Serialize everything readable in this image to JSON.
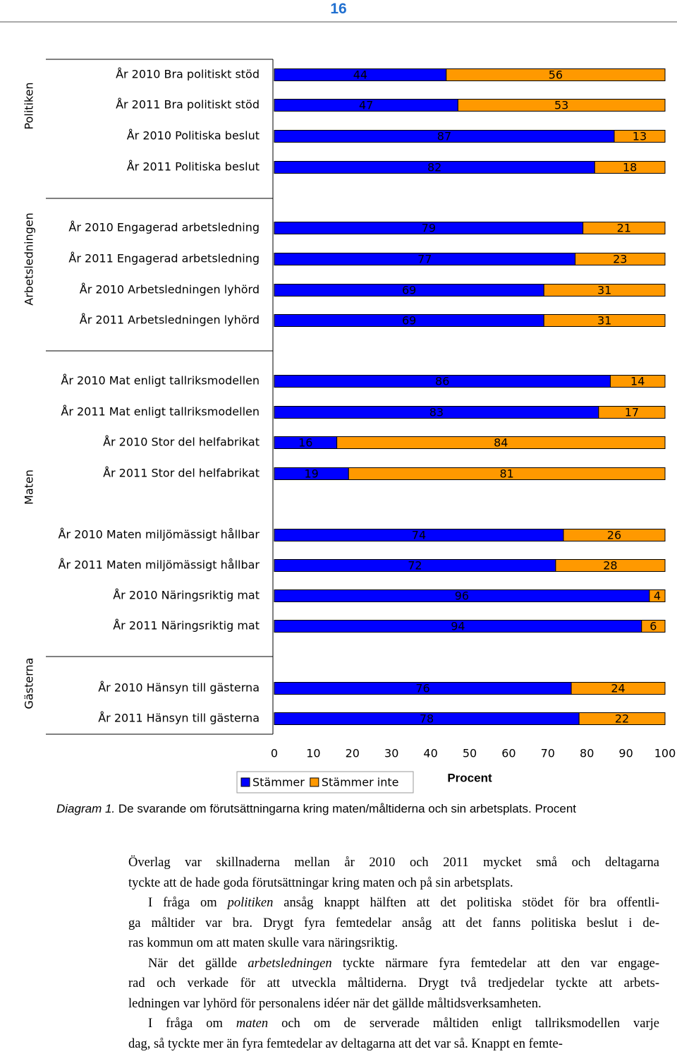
{
  "page_number": "16",
  "chart_data": {
    "type": "stacked-bar-horizontal",
    "group_labels": [
      "Politiken",
      "Arbetsledningen",
      "Maten",
      "Gästerna"
    ],
    "categories": [
      "År 2010 Bra politiskt stöd",
      "År 2011 Bra politiskt stöd",
      "År 2010 Politiska beslut",
      "År 2011 Politiska beslut",
      "År 2010 Engagerad arbetsledning",
      "År 2011 Engagerad arbetsledning",
      "År 2010 Arbetsledningen lyhörd",
      "År 2011 Arbetsledningen lyhörd",
      "År 2010 Mat enligt tallriksmodellen",
      "År 2011 Mat enligt tallriksmodellen",
      "År 2010 Stor del helfabrikat",
      "År 2011 Stor del helfabrikat",
      "År 2010 Maten miljömässigt hållbar",
      "År 2011 Maten miljömässigt hållbar",
      "År 2010 Näringsriktig mat",
      "År 2011 Näringsriktig mat",
      "År 2010 Hänsyn till gästerna",
      "År 2011 Hänsyn till gästerna"
    ],
    "series": [
      {
        "name": "Stämmer",
        "color": "#0000ff",
        "values": [
          44,
          47,
          87,
          82,
          79,
          77,
          69,
          69,
          86,
          83,
          16,
          19,
          74,
          72,
          96,
          94,
          76,
          78
        ]
      },
      {
        "name": "Stämmer inte",
        "color": "#ff9900",
        "values": [
          56,
          53,
          13,
          18,
          21,
          23,
          31,
          31,
          14,
          17,
          84,
          81,
          26,
          28,
          4,
          6,
          24,
          22
        ]
      }
    ],
    "xlim": [
      0,
      100
    ],
    "xticks": [
      0,
      10,
      20,
      30,
      40,
      50,
      60,
      70,
      80,
      90,
      100
    ],
    "xlabel": "Procent"
  },
  "caption": {
    "label": "Diagram 1.",
    "text": " De svarande om förutsättningarna kring maten/måltiderna och sin arbetsplats. Procent"
  },
  "paragraphs": [
    [
      [
        "Överlag var skillnaderna mellan år 2010 och 2011 mycket små och deltagarna"
      ],
      [
        "tyckte att de hade goda förutsättningar kring maten och på sin arbetsplats."
      ]
    ],
    [
      [
        "I fråga om ",
        "politiken",
        " ansåg knappt hälften att det politiska stödet för bra offentli-"
      ],
      [
        "ga måltider var bra. Drygt fyra femtedelar ansåg att det fanns politiska beslut i de-"
      ],
      [
        "ras kommun om att maten skulle vara näringsriktig."
      ]
    ],
    [
      [
        "När det gällde ",
        "arbetsledningen",
        " tyckte närmare fyra femtedelar att den var engage-"
      ],
      [
        "rad och verkade för att utveckla måltiderna. Drygt två tredjedelar tyckte att arbets-"
      ],
      [
        "ledningen var lyhörd för personalens idéer när det gällde måltidsverksamheten."
      ]
    ],
    [
      [
        "I fråga om ",
        "maten",
        " och om de serverade måltiden enligt tallriksmodellen varje"
      ],
      [
        "dag, så tyckte mer än fyra femtedelar av deltagarna att det var så. Knappt en femte-"
      ]
    ]
  ]
}
